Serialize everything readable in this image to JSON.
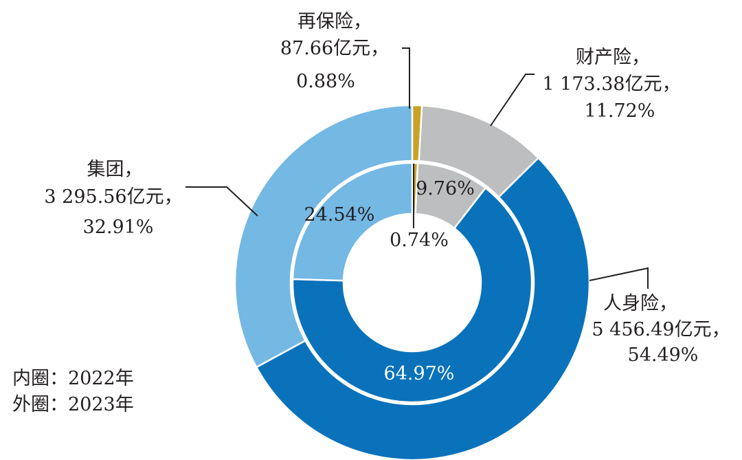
{
  "chart_data": {
    "type": "pie",
    "subtype": "nested-donut",
    "categories": [
      "人身险",
      "财产险",
      "集团",
      "再保险"
    ],
    "series": [
      {
        "name": "2023年",
        "ring": "outer",
        "values": [
          54.49,
          11.72,
          32.91,
          0.88
        ],
        "amounts": [
          "5 456.49亿元",
          "1 173.38亿元",
          "3 295.56亿元",
          "87.66亿元"
        ],
        "labels": [
          [
            "人身险，",
            "5 456.49亿元，",
            "54.49%"
          ],
          [
            "财产险，",
            "1 173.38亿元，",
            "11.72%"
          ],
          [
            "集团，",
            "3 295.56亿元，",
            "32.91%"
          ],
          [
            "再保险，",
            "87.66亿元，",
            "0.88%"
          ]
        ]
      },
      {
        "name": "2022年",
        "ring": "inner",
        "values": [
          64.97,
          9.76,
          24.54,
          0.74
        ],
        "labels": [
          "64.97%",
          "9.76%",
          "24.54%",
          "0.74%"
        ]
      }
    ],
    "colors": {
      "人身险": "#0a72bb",
      "财产险": "#bdbebf",
      "集团": "#74b8e4",
      "再保险": "#c9a227"
    },
    "legend_note": [
      "内圈：2022年",
      "外圈：2023年"
    ]
  }
}
